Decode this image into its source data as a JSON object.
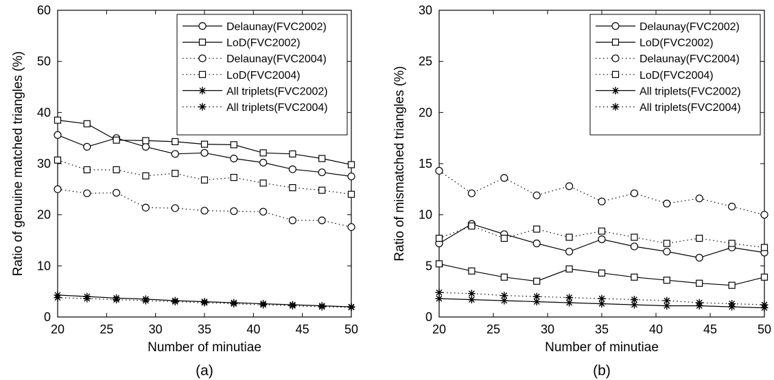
{
  "chart_data": [
    {
      "type": "line",
      "panel_label": "(a)",
      "xlabel": "Number of minutiae",
      "ylabel": "Ratio of genuine matched triangles (%)",
      "xlim": [
        20,
        50
      ],
      "ylim": [
        0,
        60
      ],
      "x_ticks": [
        "20",
        "25",
        "30",
        "35",
        "40",
        "45",
        "50"
      ],
      "y_ticks": [
        "0",
        "10",
        "20",
        "30",
        "40",
        "50",
        "60"
      ],
      "grid": false,
      "legend_position": "top-right",
      "x": [
        20,
        23,
        26,
        29,
        32,
        35,
        38,
        41,
        44,
        47,
        50
      ],
      "series": [
        {
          "name": "Delaunay(FVC2002)",
          "line": "solid",
          "marker": "circle",
          "values": [
            35.6,
            33.3,
            35.0,
            33.3,
            31.9,
            32.1,
            31.0,
            30.2,
            28.9,
            28.3,
            27.5
          ]
        },
        {
          "name": "LoD(FVC2002)",
          "line": "solid",
          "marker": "square",
          "values": [
            38.5,
            37.8,
            34.6,
            34.5,
            34.3,
            33.8,
            33.7,
            32.1,
            31.9,
            31.0,
            29.8
          ]
        },
        {
          "name": "Delaunay(FVC2004)",
          "line": "dotted",
          "marker": "circle",
          "values": [
            25.0,
            24.2,
            24.3,
            21.4,
            21.3,
            20.8,
            20.7,
            20.6,
            18.9,
            18.9,
            17.6
          ]
        },
        {
          "name": "LoD(FVC2004)",
          "line": "dotted",
          "marker": "square",
          "values": [
            30.7,
            28.8,
            28.8,
            27.6,
            28.1,
            26.8,
            27.3,
            26.2,
            25.3,
            24.8,
            24.0
          ]
        },
        {
          "name": "All triplets(FVC2002)",
          "line": "solid",
          "marker": "star",
          "values": [
            4.3,
            4.0,
            3.7,
            3.5,
            3.2,
            3.0,
            2.8,
            2.6,
            2.4,
            2.2,
            2.0
          ]
        },
        {
          "name": "All triplets(FVC2004)",
          "line": "dotted",
          "marker": "star",
          "values": [
            3.8,
            3.6,
            3.4,
            3.2,
            3.0,
            2.8,
            2.6,
            2.4,
            2.2,
            2.0,
            1.9
          ]
        }
      ]
    },
    {
      "type": "line",
      "panel_label": "(b)",
      "xlabel": "Number of minutiae",
      "ylabel": "Ratio of mismatched triangles (%)",
      "xlim": [
        20,
        50
      ],
      "ylim": [
        0,
        30
      ],
      "x_ticks": [
        "20",
        "25",
        "30",
        "35",
        "40",
        "45",
        "50"
      ],
      "y_ticks": [
        "0",
        "5",
        "10",
        "15",
        "20",
        "25",
        "30"
      ],
      "grid": false,
      "legend_position": "top-right",
      "x": [
        20,
        23,
        26,
        29,
        32,
        35,
        38,
        41,
        44,
        47,
        50
      ],
      "series": [
        {
          "name": "Delaunay(FVC2002)",
          "line": "solid",
          "marker": "circle",
          "values": [
            7.2,
            9.1,
            8.1,
            7.2,
            6.4,
            7.6,
            6.9,
            6.4,
            5.8,
            6.8,
            6.3
          ]
        },
        {
          "name": "LoD(FVC2002)",
          "line": "solid",
          "marker": "square",
          "values": [
            5.2,
            4.5,
            3.9,
            3.5,
            4.7,
            4.3,
            3.9,
            3.6,
            3.3,
            3.1,
            3.9
          ]
        },
        {
          "name": "Delaunay(FVC2004)",
          "line": "dotted",
          "marker": "circle",
          "values": [
            14.3,
            12.1,
            13.6,
            11.9,
            12.8,
            11.3,
            12.1,
            11.1,
            11.6,
            10.8,
            10.0
          ]
        },
        {
          "name": "LoD(FVC2004)",
          "line": "dotted",
          "marker": "square",
          "values": [
            7.7,
            8.9,
            7.7,
            8.6,
            7.8,
            8.4,
            7.8,
            7.2,
            7.7,
            7.2,
            6.8
          ]
        },
        {
          "name": "All triplets(FVC2002)",
          "line": "solid",
          "marker": "star",
          "values": [
            1.8,
            1.7,
            1.6,
            1.5,
            1.4,
            1.3,
            1.2,
            1.1,
            1.1,
            1.0,
            0.9
          ]
        },
        {
          "name": "All triplets(FVC2004)",
          "line": "dotted",
          "marker": "star",
          "values": [
            2.4,
            2.3,
            2.1,
            2.0,
            1.9,
            1.8,
            1.7,
            1.6,
            1.4,
            1.3,
            1.2
          ]
        }
      ]
    }
  ]
}
